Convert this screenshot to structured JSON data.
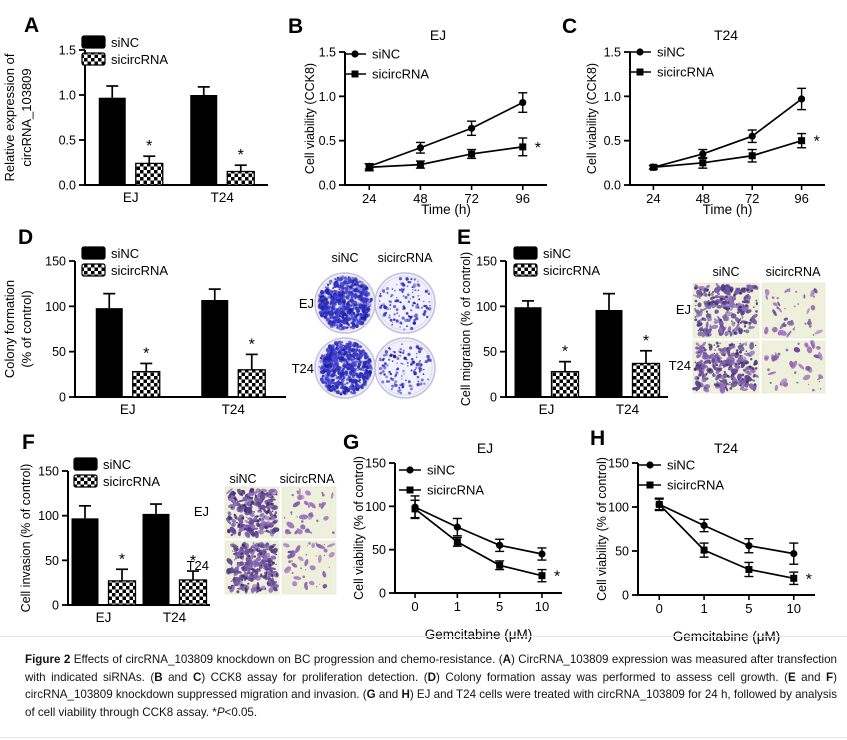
{
  "figure_letters": [
    "A",
    "B",
    "C",
    "D",
    "E",
    "F",
    "G",
    "H"
  ],
  "colors": {
    "axis": "#000000",
    "bar_solid": "#000000",
    "colony_dot": "#3434c4",
    "dish_bg": "#f2f1fb",
    "dish_rim": "#c4bfdf",
    "stain_purple": "#6a4b9c",
    "micro_bg": "#eef0db"
  },
  "chart_data": [
    {
      "panel": "A",
      "type": "bar",
      "title": "",
      "ylabel": "Relative expression of circRNA_103809",
      "ylabel_lines": [
        "Relative expression of",
        "circRNA_103809"
      ],
      "ylim": [
        0,
        1.5
      ],
      "yticks": [
        0,
        0.5,
        1.0,
        1.5
      ],
      "ytick_labels": [
        "0.0",
        "0.5",
        "1.0",
        "1.5"
      ],
      "categories": [
        "EJ",
        "T24"
      ],
      "legend": [
        "siNC",
        "sicircRNA"
      ],
      "legend_position": "top-left",
      "grid": false,
      "series": [
        {
          "name": "siNC",
          "style": "solid",
          "values": [
            0.97,
            1.0
          ],
          "errors": [
            0.13,
            0.09
          ],
          "sig": [
            "",
            ""
          ]
        },
        {
          "name": "sicircRNA",
          "style": "checker",
          "values": [
            0.24,
            0.15
          ],
          "errors": [
            0.08,
            0.07
          ],
          "sig": [
            "*",
            "*"
          ]
        }
      ]
    },
    {
      "panel": "B",
      "type": "line",
      "title": "EJ",
      "ylabel": "Cell viability (CCK8)",
      "xlabel": "Time (h)",
      "ylim": [
        0,
        1.5
      ],
      "yticks": [
        0,
        0.5,
        1.0,
        1.5
      ],
      "ytick_labels": [
        "0.0",
        "0.5",
        "1.0",
        "1.5"
      ],
      "x_tick_labels": [
        "24",
        "48",
        "72",
        "96"
      ],
      "legend": [
        "siNC",
        "sicircRNA"
      ],
      "legend_position": "inside-top-left",
      "grid": false,
      "series": [
        {
          "name": "siNC",
          "marker": "circle",
          "values": [
            0.21,
            0.42,
            0.64,
            0.93
          ],
          "errors": [
            0.03,
            0.06,
            0.08,
            0.11
          ],
          "end_sig": ""
        },
        {
          "name": "sicircRNA",
          "marker": "square",
          "values": [
            0.2,
            0.23,
            0.35,
            0.43
          ],
          "errors": [
            0.04,
            0.04,
            0.05,
            0.1
          ],
          "end_sig": "*"
        }
      ]
    },
    {
      "panel": "C",
      "type": "line",
      "title": "T24",
      "ylabel": "Cell viability (CCK8)",
      "xlabel": "Time (h)",
      "ylim": [
        0,
        1.5
      ],
      "yticks": [
        0,
        0.5,
        1.0,
        1.5
      ],
      "ytick_labels": [
        "0.0",
        "0.5",
        "1.0",
        "1.5"
      ],
      "x_tick_labels": [
        "24",
        "48",
        "72",
        "96"
      ],
      "legend": [
        "siNC",
        "sicircRNA"
      ],
      "legend_position": "inside-top-left",
      "grid": false,
      "series": [
        {
          "name": "siNC",
          "marker": "circle",
          "values": [
            0.2,
            0.35,
            0.55,
            0.97
          ],
          "errors": [
            0.02,
            0.05,
            0.07,
            0.12
          ],
          "end_sig": ""
        },
        {
          "name": "sicircRNA",
          "marker": "square",
          "values": [
            0.2,
            0.25,
            0.33,
            0.5
          ],
          "errors": [
            0.02,
            0.06,
            0.07,
            0.08
          ],
          "end_sig": "*"
        }
      ]
    },
    {
      "panel": "D",
      "type": "bar",
      "title": "",
      "ylabel": "Colony formation (% of control)",
      "ylabel_lines": [
        "Colony formation",
        "(% of control)"
      ],
      "ylim": [
        0,
        150
      ],
      "yticks": [
        0,
        50,
        100,
        150
      ],
      "ytick_labels": [
        "0",
        "50",
        "100",
        "150"
      ],
      "categories": [
        "EJ",
        "T24"
      ],
      "legend": [
        "siNC",
        "sicircRNA"
      ],
      "legend_position": "top-left",
      "grid": false,
      "series": [
        {
          "name": "siNC",
          "style": "solid",
          "values": [
            98,
            107
          ],
          "errors": [
            16,
            12
          ],
          "sig": [
            "",
            ""
          ]
        },
        {
          "name": "sicircRNA",
          "style": "checker",
          "values": [
            28,
            30
          ],
          "errors": [
            9,
            17
          ],
          "sig": [
            "*",
            "*"
          ]
        }
      ]
    },
    {
      "panel": "E",
      "type": "bar",
      "title": "",
      "ylabel": "Cell migration (% of control)",
      "ylabel_lines": [
        "Cell migration (% of control)"
      ],
      "ylim": [
        0,
        150
      ],
      "yticks": [
        0,
        50,
        100,
        150
      ],
      "ytick_labels": [
        "0",
        "50",
        "100",
        "150"
      ],
      "categories": [
        "EJ",
        "T24"
      ],
      "legend": [
        "siNC",
        "sicircRNA"
      ],
      "legend_position": "top-left",
      "grid": false,
      "series": [
        {
          "name": "siNC",
          "style": "solid",
          "values": [
            99,
            96
          ],
          "errors": [
            7,
            18
          ],
          "sig": [
            "",
            ""
          ]
        },
        {
          "name": "sicircRNA",
          "style": "checker",
          "values": [
            28,
            37
          ],
          "errors": [
            11,
            14
          ],
          "sig": [
            "*",
            "*"
          ]
        }
      ]
    },
    {
      "panel": "F",
      "type": "bar",
      "title": "",
      "ylabel": "Cell invasion (% of control)",
      "ylabel_lines": [
        "Cell invasion (% of control)"
      ],
      "ylim": [
        0,
        150
      ],
      "yticks": [
        0,
        50,
        100,
        150
      ],
      "ytick_labels": [
        "0",
        "50",
        "100",
        "150"
      ],
      "categories": [
        "EJ",
        "T24"
      ],
      "legend": [
        "siNC",
        "sicircRNA"
      ],
      "legend_position": "top-left",
      "grid": false,
      "series": [
        {
          "name": "siNC",
          "style": "solid",
          "values": [
            97,
            102
          ],
          "errors": [
            14,
            11
          ],
          "sig": [
            "",
            ""
          ]
        },
        {
          "name": "sicircRNA",
          "style": "checker",
          "values": [
            27,
            28
          ],
          "errors": [
            13,
            10
          ],
          "sig": [
            "*",
            "*"
          ]
        }
      ]
    },
    {
      "panel": "G",
      "type": "line",
      "title": "EJ",
      "ylabel": "Cell viability (% of control)",
      "xlabel": "Gemcitabine (μM)",
      "ylim": [
        0,
        150
      ],
      "yticks": [
        0,
        50,
        100,
        150
      ],
      "ytick_labels": [
        "0",
        "50",
        "100",
        "150"
      ],
      "x_tick_labels": [
        "0",
        "1",
        "5",
        "10"
      ],
      "legend": [
        "siNC",
        "sicircRNA"
      ],
      "legend_position": "inside-top-left",
      "grid": false,
      "series": [
        {
          "name": "siNC",
          "marker": "circle",
          "values": [
            99,
            76,
            55,
            45
          ],
          "errors": [
            13,
            10,
            7,
            7
          ],
          "end_sig": ""
        },
        {
          "name": "sicircRNA",
          "marker": "square",
          "values": [
            97,
            59,
            32,
            20
          ],
          "errors": [
            10,
            5,
            5,
            7
          ],
          "end_sig": "*"
        }
      ]
    },
    {
      "panel": "H",
      "type": "line",
      "title": "T24",
      "ylabel": "Cell viability (% of control)",
      "xlabel": "Gemcitabine (μM)",
      "ylim": [
        0,
        150
      ],
      "yticks": [
        0,
        50,
        100,
        150
      ],
      "ytick_labels": [
        "0",
        "50",
        "100",
        "150"
      ],
      "x_tick_labels": [
        "0",
        "1",
        "5",
        "10"
      ],
      "legend": [
        "siNC",
        "sicircRNA"
      ],
      "legend_position": "inside-top-left",
      "grid": false,
      "series": [
        {
          "name": "siNC",
          "marker": "circle",
          "values": [
            103,
            79,
            56,
            47
          ],
          "errors": [
            7,
            7,
            8,
            12
          ],
          "end_sig": ""
        },
        {
          "name": "sicircRNA",
          "marker": "square",
          "values": [
            103,
            51,
            29,
            19
          ],
          "errors": [
            6,
            8,
            8,
            7
          ],
          "end_sig": "*"
        }
      ]
    }
  ],
  "image_panels": {
    "D": {
      "kind": "colony-formation-dishes",
      "col_labels": [
        "siNC",
        "sicircRNA"
      ],
      "row_labels": [
        "EJ",
        "T24"
      ],
      "cells": [
        [
          "dense",
          "sparse"
        ],
        [
          "dense",
          "sparse"
        ]
      ]
    },
    "E": {
      "kind": "transwell-migration-micrographs",
      "col_labels": [
        "siNC",
        "sicircRNA"
      ],
      "row_labels": [
        "EJ",
        "T24"
      ],
      "cells": [
        [
          "dense",
          "sparse"
        ],
        [
          "dense",
          "sparse"
        ]
      ]
    },
    "F": {
      "kind": "transwell-invasion-micrographs",
      "col_labels": [
        "siNC",
        "sicircRNA"
      ],
      "row_labels": [
        "EJ",
        "T24"
      ],
      "cells": [
        [
          "dense",
          "sparse"
        ],
        [
          "dense",
          "sparse"
        ]
      ]
    }
  },
  "caption": {
    "segments": [
      {
        "text": "Figure 2",
        "bold": true
      },
      {
        "text": " Effects of circRNA_103809 knockdown on BC progression and chemo-resistance. ("
      },
      {
        "text": "A",
        "bold": true
      },
      {
        "text": ") CircRNA_103809 expression was measured after transfection with indicated siRNAs. ("
      },
      {
        "text": "B",
        "bold": true
      },
      {
        "text": " and "
      },
      {
        "text": "C",
        "bold": true
      },
      {
        "text": ") CCK8 assay for proliferation detection. ("
      },
      {
        "text": "D",
        "bold": true
      },
      {
        "text": ") Colony formation assay was performed to assess cell growth. ("
      },
      {
        "text": "E",
        "bold": true
      },
      {
        "text": " and "
      },
      {
        "text": "F",
        "bold": true
      },
      {
        "text": ") circRNA_103809 knockdown suppressed migration and invasion. ("
      },
      {
        "text": "G",
        "bold": true
      },
      {
        "text": " and "
      },
      {
        "text": "H",
        "bold": true
      },
      {
        "text": ") EJ and T24 cells were treated with circRNA_103809 for 24 h, followed by analysis of cell viability through CCK8 assay. *"
      },
      {
        "text": "P",
        "italic": true
      },
      {
        "text": "<0.05."
      }
    ]
  }
}
